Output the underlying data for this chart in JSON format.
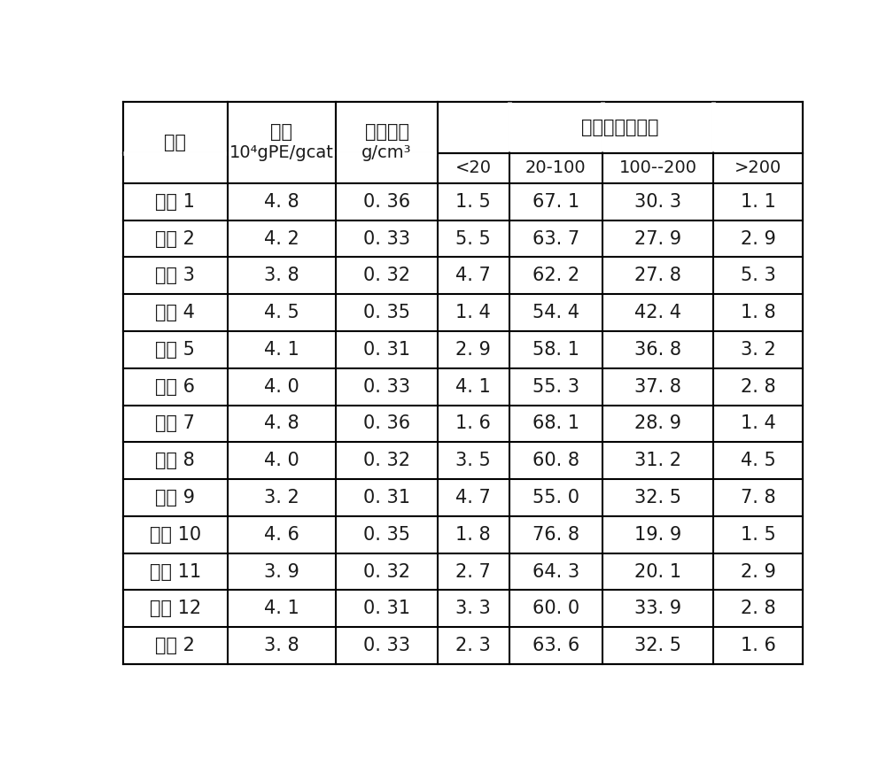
{
  "col_headers_line1_0": "编号",
  "col_headers_line1_1a": "活性",
  "col_headers_line1_1b": "10⁴gPE/gcat",
  "col_headers_line1_2a": "堆积密度",
  "col_headers_line1_2b": "g/cm³",
  "col_headers_span": "粒径分布（目）",
  "col_headers_row2": [
    "<20",
    "20-100",
    "100--200",
    ">200"
  ],
  "rows": [
    [
      "实例 1",
      "4. 8",
      "0. 36",
      "1. 5",
      "67. 1",
      "30. 3",
      "1. 1"
    ],
    [
      "实例 2",
      "4. 2",
      "0. 33",
      "5. 5",
      "63. 7",
      "27. 9",
      "2. 9"
    ],
    [
      "实例 3",
      "3. 8",
      "0. 32",
      "4. 7",
      "62. 2",
      "27. 8",
      "5. 3"
    ],
    [
      "实例 4",
      "4. 5",
      "0. 35",
      "1. 4",
      "54. 4",
      "42. 4",
      "1. 8"
    ],
    [
      "实例 5",
      "4. 1",
      "0. 31",
      "2. 9",
      "58. 1",
      "36. 8",
      "3. 2"
    ],
    [
      "实例 6",
      "4. 0",
      "0. 33",
      "4. 1",
      "55. 3",
      "37. 8",
      "2. 8"
    ],
    [
      "实例 7",
      "4. 8",
      "0. 36",
      "1. 6",
      "68. 1",
      "28. 9",
      "1. 4"
    ],
    [
      "实例 8",
      "4. 0",
      "0. 32",
      "3. 5",
      "60. 8",
      "31. 2",
      "4. 5"
    ],
    [
      "实例 9",
      "3. 2",
      "0. 31",
      "4. 7",
      "55. 0",
      "32. 5",
      "7. 8"
    ],
    [
      "实例 10",
      "4. 6",
      "0. 35",
      "1. 8",
      "76. 8",
      "19. 9",
      "1. 5"
    ],
    [
      "实例 11",
      "3. 9",
      "0. 32",
      "2. 7",
      "64. 3",
      "20. 1",
      "2. 9"
    ],
    [
      "实例 12",
      "4. 1",
      "0. 31",
      "3. 3",
      "60. 0",
      "33. 9",
      "2. 8"
    ],
    [
      "对比 2",
      "3. 8",
      "0. 33",
      "2. 3",
      "63. 6",
      "32. 5",
      "1. 6"
    ]
  ],
  "background_color": "#ffffff",
  "line_color": "#000000",
  "text_color": "#1a1a1a",
  "font_size": 15
}
